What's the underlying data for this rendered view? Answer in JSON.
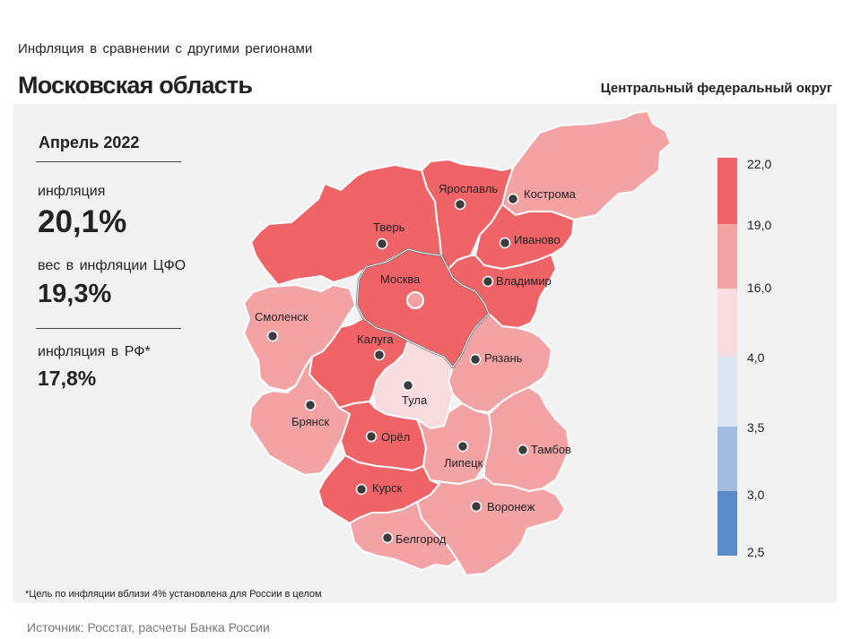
{
  "header": {
    "subtitle": "Инфляция  в сравнении  с другими  регионами",
    "title": "Московская область",
    "district": "Центральный федеральный округ"
  },
  "summary": {
    "month": "Апрель 2022",
    "inflation_label": "инфляция",
    "inflation_value": "20,1%",
    "weight_label": "вес в инфляции  ЦФО",
    "weight_value": "19,3%",
    "rf_label": "инфляция  в РФ*",
    "rf_value": "17,8%"
  },
  "legend": {
    "ticks": [
      "22,0",
      "19,0",
      "16,0",
      "4,0",
      "3,5",
      "3,0",
      "2,5"
    ],
    "colors": [
      "#f06468",
      "#f4a3a4",
      "#f9dcdd",
      "#dbe5f3",
      "#a3bde0",
      "#5b8ac8"
    ]
  },
  "map": {
    "colors": {
      "high": "#f06468",
      "mid": "#f4a3a4",
      "low": "#f9dcdd",
      "highlight_border": "#6e6e6e"
    },
    "regions": [
      {
        "name": "Москва",
        "class": "high",
        "highlighted": true
      },
      {
        "name": "Тверь",
        "class": "high"
      },
      {
        "name": "Ярославль",
        "class": "high"
      },
      {
        "name": "Кострома",
        "class": "mid"
      },
      {
        "name": "Иваново",
        "class": "high"
      },
      {
        "name": "Владимир",
        "class": "high"
      },
      {
        "name": "Смоленск",
        "class": "mid"
      },
      {
        "name": "Калуга",
        "class": "high"
      },
      {
        "name": "Тула",
        "class": "low"
      },
      {
        "name": "Рязань",
        "class": "mid"
      },
      {
        "name": "Брянск",
        "class": "mid"
      },
      {
        "name": "Орёл",
        "class": "high"
      },
      {
        "name": "Липецк",
        "class": "mid"
      },
      {
        "name": "Тамбов",
        "class": "mid"
      },
      {
        "name": "Курск",
        "class": "high"
      },
      {
        "name": "Воронеж",
        "class": "mid"
      },
      {
        "name": "Белгород",
        "class": "mid"
      }
    ]
  },
  "footnote": "*Цель по инфляции вблизи 4% установлена для России в целом",
  "source": "Источник: Росстат, расчеты Банка России"
}
